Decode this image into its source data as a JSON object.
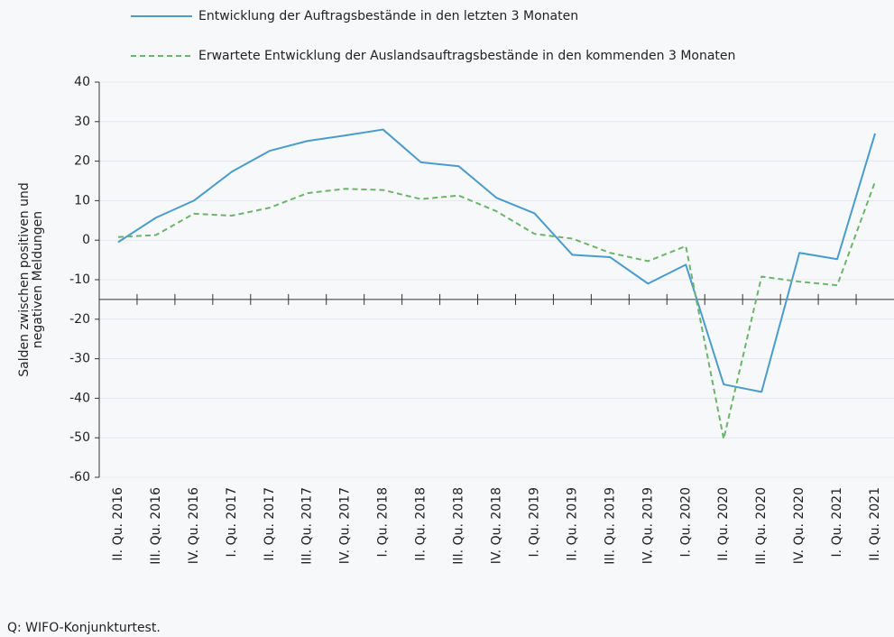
{
  "chart_data": {
    "type": "line",
    "categories": [
      "II. Qu. 2016",
      "III. Qu. 2016",
      "IV. Qu. 2016",
      "I. Qu. 2017",
      "II. Qu. 2017",
      "III. Qu. 2017",
      "IV. Qu. 2017",
      "I. Qu. 2018",
      "II. Qu. 2018",
      "III. Qu. 2018",
      "IV. Qu. 2018",
      "I. Qu. 2019",
      "II. Qu. 2019",
      "III. Qu. 2019",
      "IV. Qu. 2019",
      "I. Qu. 2020",
      "II. Qu. 2020",
      "III. Qu. 2020",
      "IV. Qu. 2020",
      "I. Qu. 2021",
      "II. Qu. 2021"
    ],
    "series": [
      {
        "name": "Entwicklung der Auftragsbestände in den letzten 3 Monaten",
        "color": "#4a9ccc",
        "dash": false,
        "values": [
          -0.5,
          5.7,
          10,
          17.3,
          22.6,
          25.1,
          26.5,
          28,
          19.7,
          18.7,
          10.7,
          6.8,
          -3.7,
          -4.3,
          -11,
          -6.2,
          -36.5,
          -38.4,
          -3.2,
          -4.8,
          27
        ]
      },
      {
        "name": "Erwartete Entwicklung der Auslandsauftragsbestände in den kommenden 3 Monaten",
        "color": "#6cb46c",
        "dash": true,
        "values": [
          0.8,
          1.3,
          6.7,
          6.2,
          8.2,
          11.9,
          13,
          12.7,
          10.4,
          11.3,
          7.3,
          1.6,
          0.4,
          -3.2,
          -5.3,
          -1.5,
          -50.3,
          -9.2,
          -10.5,
          -11.4,
          14.8
        ]
      }
    ],
    "y_label": [
      "Salden zwischen positiven und",
      "negativen Meldungen"
    ],
    "ylim": [
      -60,
      40
    ],
    "yticks": [
      -60,
      -50,
      -40,
      -30,
      -20,
      -10,
      0,
      10,
      20,
      30,
      40
    ],
    "x_axis_crossing": -15,
    "grid": true
  },
  "source": "Q: WIFO-Konjunkturtest."
}
